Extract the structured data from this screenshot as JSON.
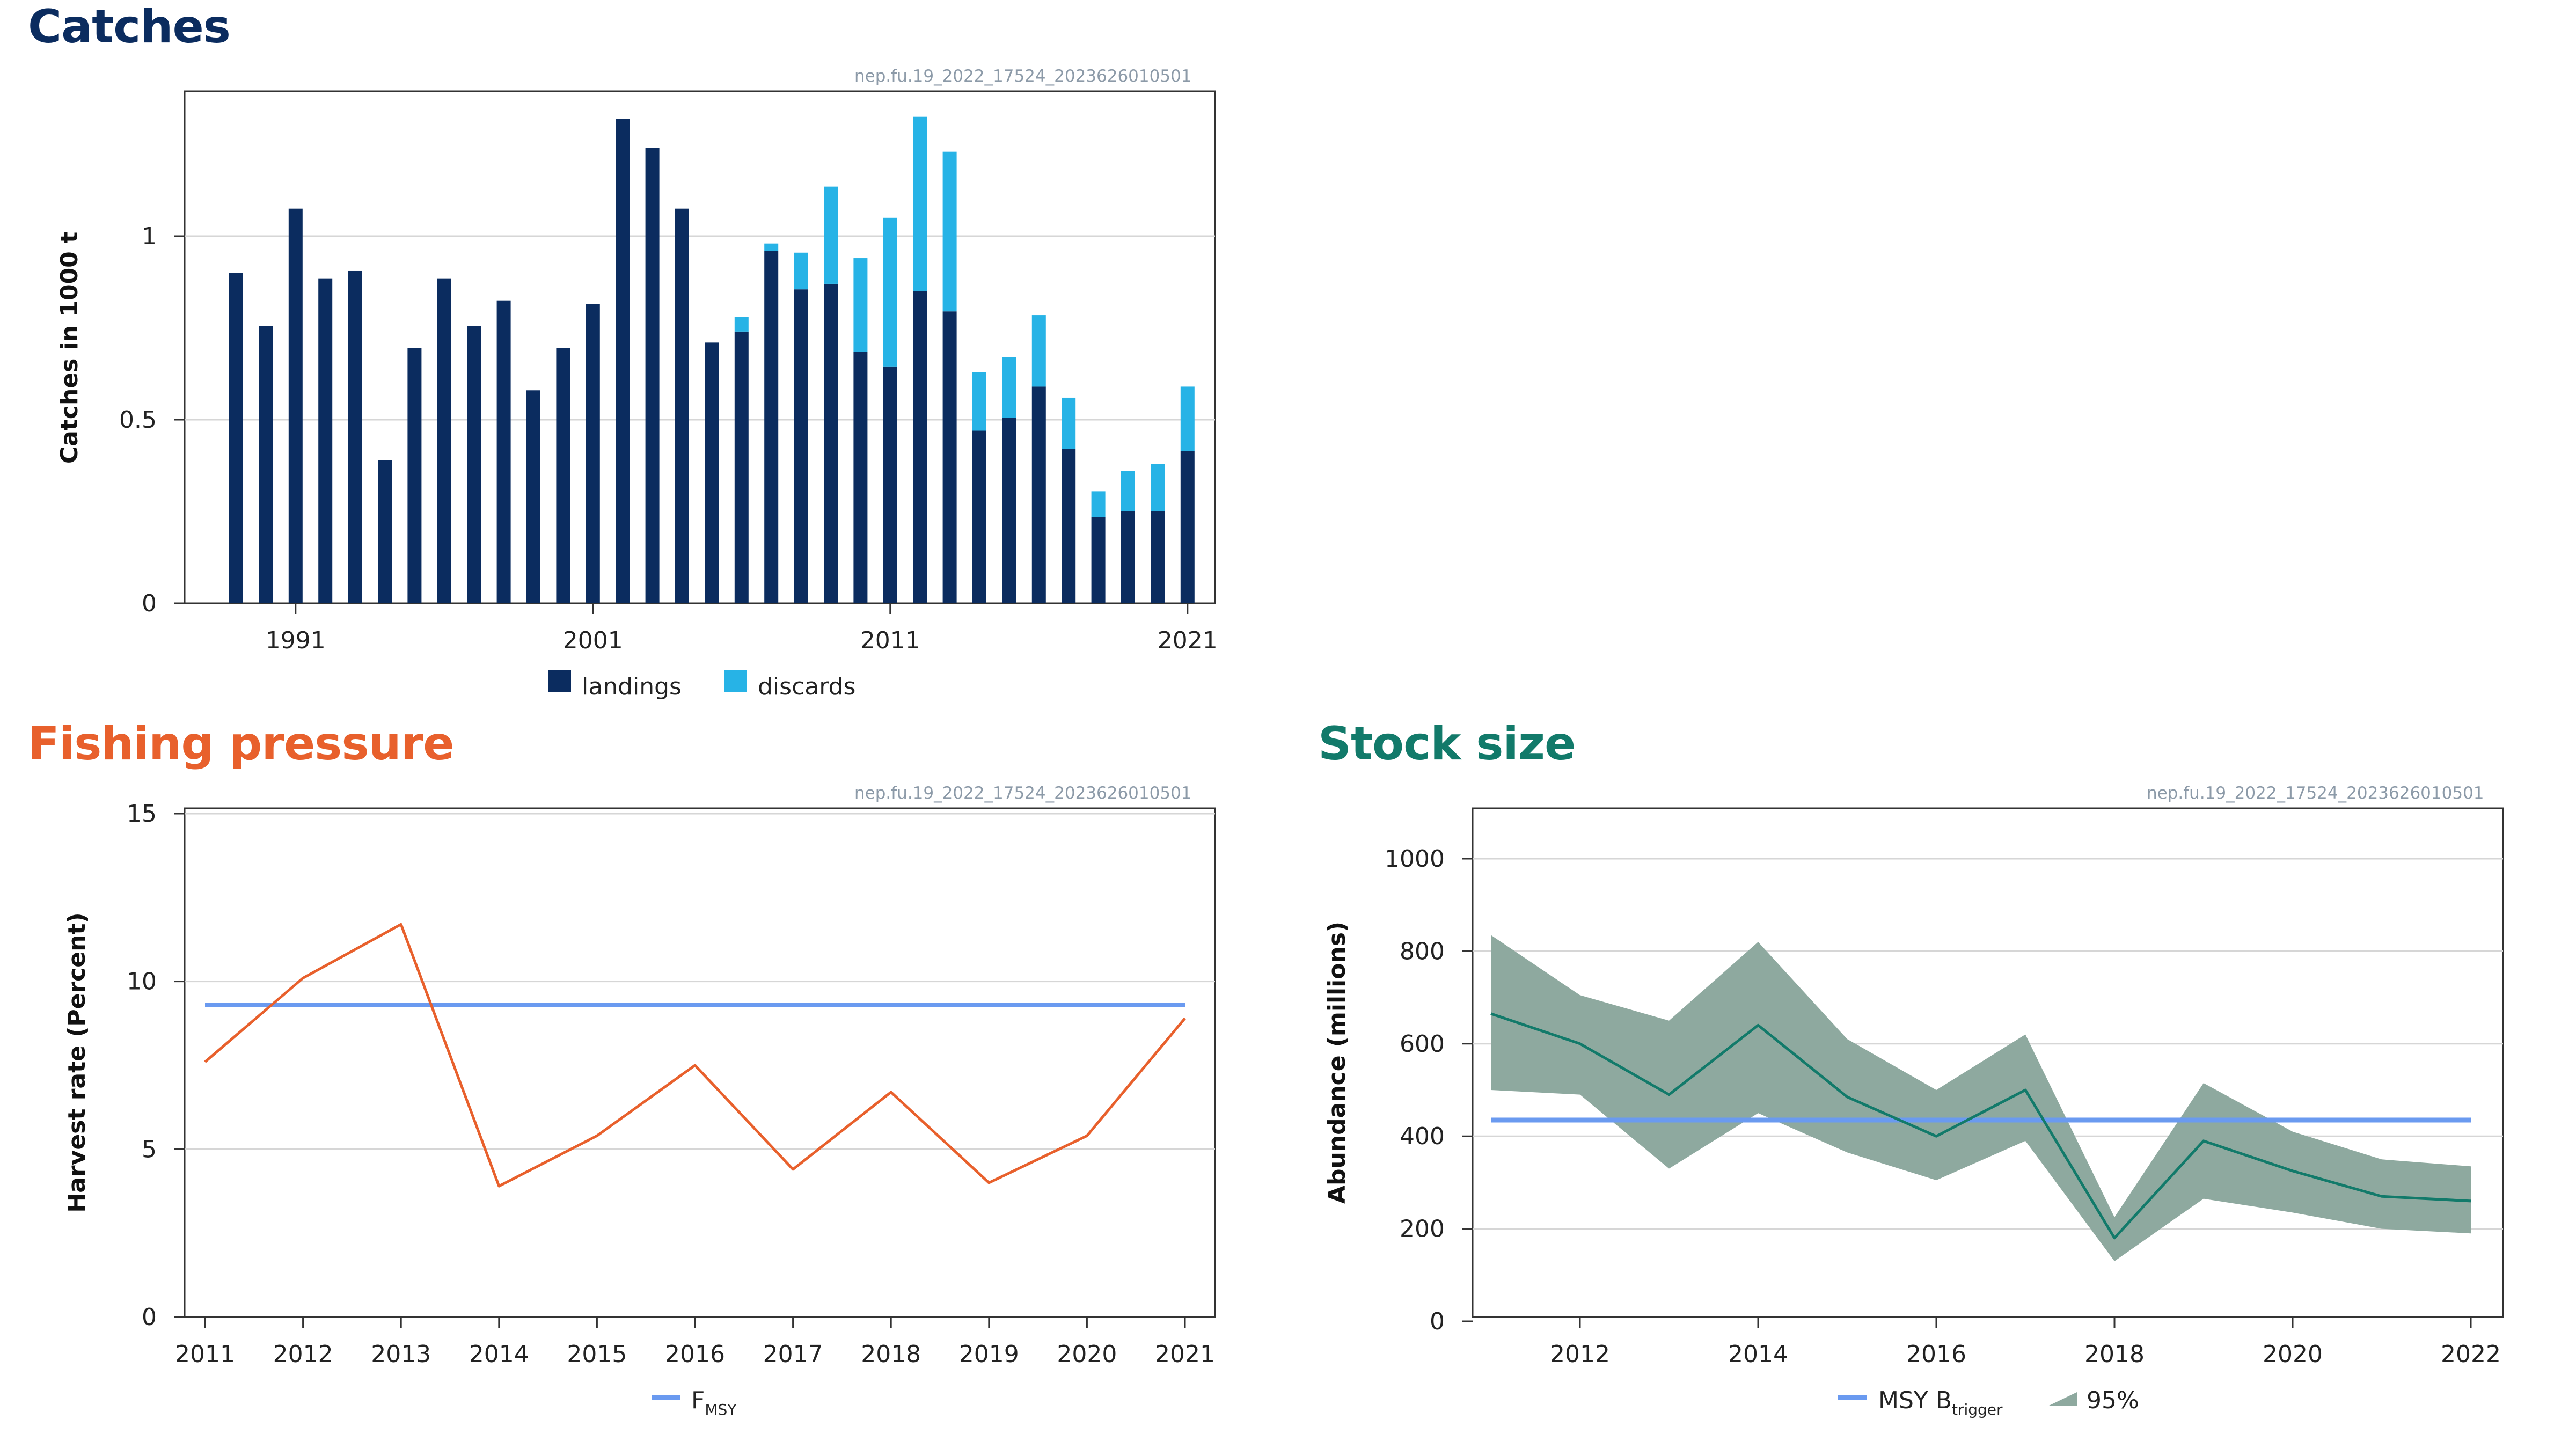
{
  "panels": {
    "catches": {
      "title": "Catches",
      "color": "#0b2c5f",
      "code": "nep.fu.19_2022_17524_2023626010501"
    },
    "fishing": {
      "title": "Fishing pressure",
      "color": "#e8602c",
      "code": "nep.fu.19_2022_17524_2023626010501"
    },
    "stock": {
      "title": "Stock size",
      "color": "#127a6a",
      "code": "nep.fu.19_2022_17524_2023626010501"
    }
  },
  "chart_data": [
    {
      "id": "catches",
      "type": "bar",
      "stacked": true,
      "ylabel": "Catches in 1000 t",
      "ylim": [
        0,
        1.39
      ],
      "yticks": [
        0,
        0.5,
        1
      ],
      "yticklabels": [
        "0",
        "0.5",
        "1"
      ],
      "xticks": [
        1991,
        2001,
        2011,
        2021
      ],
      "grid": true,
      "legend_position": "bottom",
      "x": [
        1989,
        1990,
        1991,
        1992,
        1993,
        1994,
        1995,
        1996,
        1997,
        1998,
        1999,
        2000,
        2001,
        2002,
        2003,
        2004,
        2005,
        2006,
        2007,
        2008,
        2009,
        2010,
        2011,
        2012,
        2013,
        2014,
        2015,
        2016,
        2017,
        2018,
        2019,
        2020,
        2021
      ],
      "series": [
        {
          "name": "landings",
          "color": "#0b2c5f",
          "values": [
            0.9,
            0.755,
            1.075,
            0.885,
            0.905,
            0.39,
            0.695,
            0.885,
            0.755,
            0.825,
            0.58,
            0.695,
            0.815,
            1.32,
            1.24,
            1.075,
            0.71,
            0.74,
            0.96,
            0.855,
            0.87,
            0.685,
            0.645,
            0.85,
            0.795,
            0.47,
            0.505,
            0.59,
            0.42,
            0.235,
            0.25,
            0.25,
            0.415
          ]
        },
        {
          "name": "discards",
          "color": "#27b3e6",
          "values": [
            0,
            0,
            0,
            0,
            0,
            0,
            0,
            0,
            0,
            0,
            0,
            0,
            0,
            0,
            0,
            0,
            0,
            0.04,
            0.02,
            0.1,
            0.265,
            0.255,
            0.405,
            0.475,
            0.435,
            0.16,
            0.165,
            0.195,
            0.14,
            0.07,
            0.11,
            0.13,
            0.175
          ]
        }
      ]
    },
    {
      "id": "fishing",
      "type": "line",
      "ylabel": "Harvest rate (Percent)",
      "ylim": [
        0,
        15
      ],
      "yticks": [
        0,
        5,
        10,
        15
      ],
      "grid": true,
      "legend_position": "bottom",
      "x": [
        2011,
        2012,
        2013,
        2014,
        2015,
        2016,
        2017,
        2018,
        2019,
        2020,
        2021
      ],
      "series": [
        {
          "name": "",
          "color": "#e8602c",
          "values": [
            7.6,
            10.1,
            11.7,
            3.9,
            5.4,
            7.5,
            4.4,
            6.7,
            4.0,
            5.4,
            8.9
          ]
        },
        {
          "name": "F",
          "subscript": "MSY",
          "color": "#6a9af0",
          "values": [
            9.3,
            9.3,
            9.3,
            9.3,
            9.3,
            9.3,
            9.3,
            9.3,
            9.3,
            9.3,
            9.3
          ]
        }
      ]
    },
    {
      "id": "stock",
      "type": "line",
      "ylabel": "Abundance (millions)",
      "ylim": [
        0,
        1100
      ],
      "yticks": [
        0,
        200,
        400,
        600,
        800,
        1000
      ],
      "xticks": [
        2012,
        2014,
        2016,
        2018,
        2020,
        2022
      ],
      "grid": true,
      "legend_position": "bottom",
      "x": [
        2011,
        2012,
        2013,
        2014,
        2015,
        2016,
        2017,
        2018,
        2019,
        2020,
        2021,
        2022
      ],
      "series": [
        {
          "name": "",
          "color": "#127a6a",
          "values": [
            665,
            600,
            490,
            640,
            485,
            400,
            500,
            180,
            390,
            325,
            270,
            260
          ]
        },
        {
          "name": "MSY B",
          "subscript": "trigger",
          "color": "#6a9af0",
          "values": [
            435,
            435,
            435,
            435,
            435,
            435,
            435,
            435,
            435,
            435,
            435,
            435
          ]
        }
      ],
      "band": {
        "name": "95%",
        "color": "#8ea99f",
        "lower": [
          500,
          490,
          330,
          450,
          365,
          305,
          390,
          130,
          265,
          235,
          200,
          190
        ],
        "upper": [
          835,
          705,
          650,
          820,
          610,
          500,
          620,
          225,
          515,
          410,
          350,
          335
        ]
      }
    }
  ]
}
